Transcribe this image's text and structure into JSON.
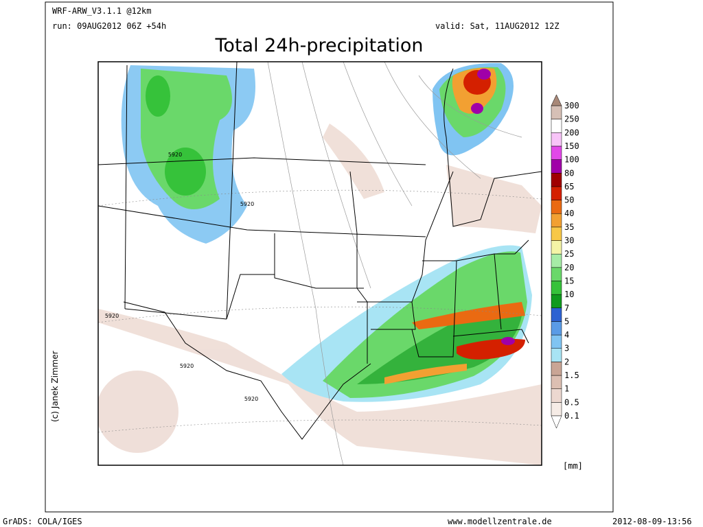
{
  "header": {
    "model": "WRF-ARW_V3.1.1 @12km",
    "run": "run: 09AUG2012 06Z +54h",
    "valid": "valid: Sat, 11AUG2012 12Z",
    "title": "Total 24h-precipitation"
  },
  "copyright": "(c) Janek Zimmer",
  "contour_labels": [
    "5920",
    "5920",
    "5920",
    "5920",
    "5920"
  ],
  "legend": {
    "unit": "[mm]",
    "levels": [
      0.1,
      0.5,
      1,
      1.5,
      2,
      3,
      4,
      5,
      7,
      10,
      15,
      20,
      25,
      30,
      35,
      40,
      50,
      65,
      80,
      100,
      150,
      200,
      250,
      300
    ],
    "colors": [
      "#ffffff",
      "#f6ece6",
      "#ecd8d0",
      "#dcbfb2",
      "#c9a595",
      "#a8e4f4",
      "#80c4f2",
      "#5a9be6",
      "#2d62d2",
      "#109a1e",
      "#36c23a",
      "#6ad86a",
      "#a6eca6",
      "#f4f4a6",
      "#f8c848",
      "#f2a032",
      "#ea6a12",
      "#d42000",
      "#a00000",
      "#a000a8",
      "#e248e8",
      "#f8c4f8",
      "#ffffff",
      "#d6c0b6",
      "#a88878"
    ]
  },
  "footer": {
    "left": "GrADS: COLA/IGES",
    "center": "www.modellzentrale.de",
    "right": "2012-08-09-13:56"
  }
}
